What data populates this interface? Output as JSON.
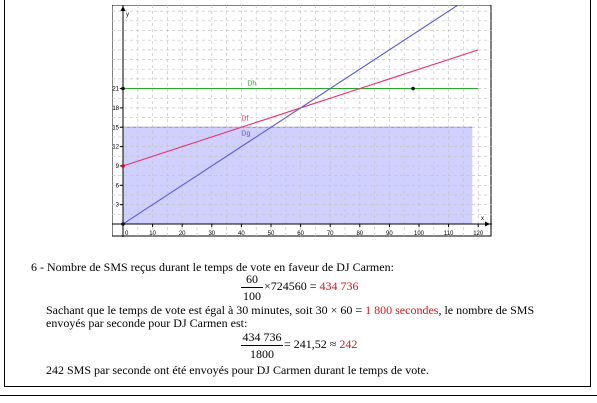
{
  "chart_data": {
    "type": "line",
    "xlabel": "x",
    "ylabel": "y",
    "xlim": [
      0,
      120
    ],
    "ylim": [
      0,
      24
    ],
    "x_ticks": [
      10,
      20,
      30,
      40,
      50,
      60,
      70,
      80,
      90,
      100,
      110,
      120
    ],
    "y_ticks": [
      3,
      6,
      9,
      12,
      15,
      18,
      21
    ],
    "origin_label": "0",
    "grid": true,
    "series": [
      {
        "name": "Dh",
        "color": "#2ea52e",
        "points": [
          [
            0,
            21
          ],
          [
            120,
            21
          ]
        ]
      },
      {
        "name": "Df",
        "color": "#e8336a",
        "points": [
          [
            0,
            9
          ],
          [
            120,
            27
          ]
        ]
      },
      {
        "name": "Dg",
        "color": "#5a5ad6",
        "points": [
          [
            0,
            0
          ],
          [
            120,
            36
          ]
        ]
      }
    ],
    "shaded_region": {
      "x": [
        0,
        118
      ],
      "y": [
        0,
        15
      ],
      "color": "#c8c8ff"
    },
    "marked_points": [
      {
        "x": 0,
        "y": 21,
        "color": "#111111"
      },
      {
        "x": 98,
        "y": 21,
        "color": "#111111"
      },
      {
        "x": 0,
        "y": 9,
        "color": "#c0102a"
      },
      {
        "x": 0,
        "y": 0,
        "color": "#111111"
      }
    ]
  },
  "doc": {
    "q6_line": "6 - Nombre de SMS reçus durant le temps de vote en faveur de DJ Carmen:",
    "frac1_num": "60",
    "frac1_den": "100",
    "frac1_rest": "×724560 = ",
    "frac1_result": "434 736",
    "para_a": "Sachant que le temps de vote est égal à 30 minutes, soit 30 × 60 = ",
    "para_a_red": "1 800 secondes",
    "para_a_end": ", le nombre de SMS",
    "para_b": "envoyés par seconde pour DJ Carmen est:",
    "frac2_num": "434 736",
    "frac2_den": "1800",
    "frac2_rest": " = 241,52 ≈ ",
    "frac2_result": "242",
    "conclusion": "242 SMS par seconde ont été envoyés pour DJ Carmen durant le temps de vote."
  }
}
